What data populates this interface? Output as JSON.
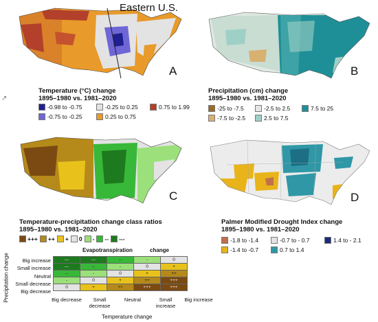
{
  "panel_a": {
    "letter": "A",
    "annotation": "Eastern U.S.",
    "title_line1": "Temperature (°C) change",
    "title_line2": "1895–1980 vs. 1981–2020",
    "legend": [
      {
        "label": "-0.98 to -0.75",
        "color": "#1f1f8f"
      },
      {
        "label": "-0.25 to 0.25",
        "color": "#e3e3e3"
      },
      {
        "label": "0.75 to 1.99",
        "color": "#b3402a"
      },
      {
        "label": "-0.75 to -0.25",
        "color": "#6f66d6"
      },
      {
        "label": "0.25 to 0.75",
        "color": "#e89a2a"
      }
    ]
  },
  "panel_b": {
    "letter": "B",
    "title_line1": "Precipitation (cm) change",
    "title_line2": "1895–1980 vs. 1981–2020",
    "legend": [
      {
        "label": "-25 to -7.5",
        "color": "#9b6a2a"
      },
      {
        "label": "-2.5 to 2.5",
        "color": "#e6e6e6"
      },
      {
        "label": "7.5 to 25",
        "color": "#1f8f97"
      },
      {
        "label": "-7.5 to -2.5",
        "color": "#d8b070"
      },
      {
        "label": "2.5 to 7.5",
        "color": "#9fd0c6"
      }
    ]
  },
  "panel_c": {
    "letter": "C",
    "title_line1": "Temperature-precipitation change class ratios",
    "title_line2": "1895–1980 vs. 1981–2020",
    "legend": [
      {
        "label": "+++",
        "color": "#7a4a12"
      },
      {
        "label": "++",
        "color": "#b58a1a"
      },
      {
        "label": "+",
        "color": "#e8c21a"
      },
      {
        "label": "0",
        "color": "#e3e3e3"
      },
      {
        "label": "-",
        "color": "#9be07a"
      },
      {
        "label": "--",
        "color": "#38b838"
      },
      {
        "label": "---",
        "color": "#1e7a1e"
      }
    ]
  },
  "panel_d": {
    "letter": "D",
    "title_line1": "Palmer Modified Drought Index change",
    "title_line2": "1895–1980 vs. 1981–2020",
    "legend": [
      {
        "label": "-1.8 to -1.4",
        "color": "#c0704a"
      },
      {
        "label": "-0.7 to - 0.7",
        "color": "#e3e3e3"
      },
      {
        "label": "1.4 to - 2.1",
        "color": "#1c2a7a"
      },
      {
        "label": "-1.4 to -0.7",
        "color": "#e8b41a"
      },
      {
        "label": "0.7 to 1.4",
        "color": "#2f97a6"
      }
    ]
  },
  "matrix": {
    "evapo_label": "Evapotranspiration",
    "change_label": "change",
    "y_axis_label": "Precipitation change",
    "x_axis_label": "Temperature change",
    "row_labels": [
      "Big increase",
      "Small increase",
      "Neutral",
      "Small decrease",
      "Big decrease"
    ],
    "col_labels": [
      "Big decrease",
      "Small decrease",
      "Neutral",
      "Small increase",
      "Big increase"
    ],
    "cells": [
      [
        "---",
        "---",
        "--",
        "-",
        "0"
      ],
      [
        "---",
        "--",
        "-",
        "0",
        "+"
      ],
      [
        "--",
        "-",
        "0",
        "+",
        "++"
      ],
      [
        "-",
        "0",
        "+",
        "++",
        "+++"
      ],
      [
        "0",
        "+",
        "++",
        "+++",
        "+++"
      ]
    ],
    "cell_colors": {
      "---": "#1e7a1e",
      "--": "#38b838",
      "-": "#9be07a",
      "0": "#e3e3e3",
      "+": "#e8c21a",
      "++": "#b58a1a",
      "+++": "#7a4a12"
    }
  }
}
